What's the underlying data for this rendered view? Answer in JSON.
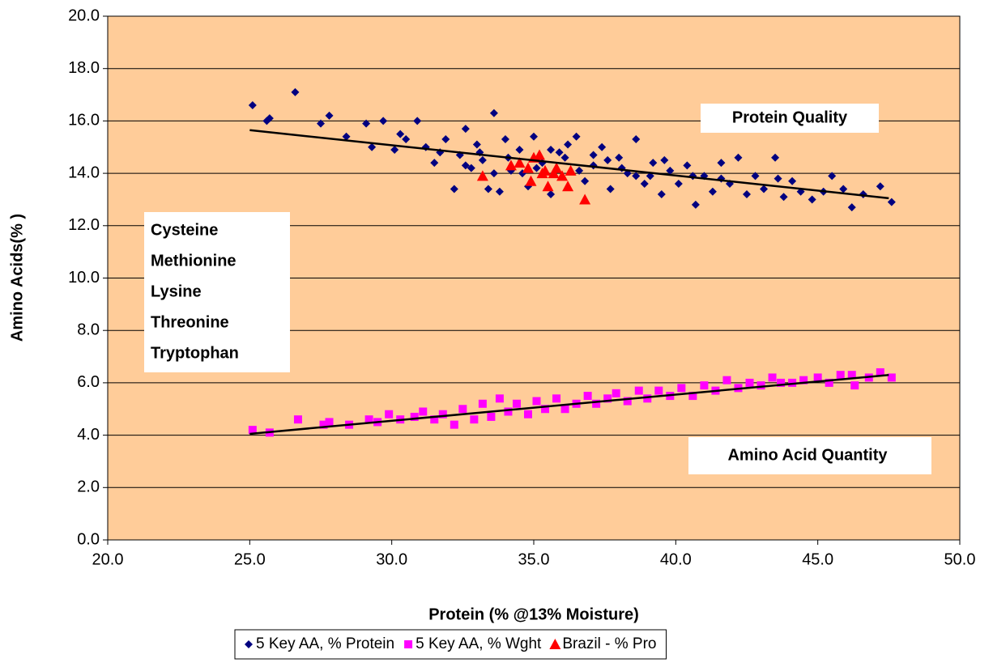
{
  "chart_data": {
    "type": "scatter",
    "x_label": "Protein (% @13% Moisture)",
    "y_label": "Amino Acids(% )",
    "xlim": [
      20,
      50
    ],
    "ylim": [
      0,
      20
    ],
    "xticks": [
      {
        "value": 20,
        "label": "20.0"
      },
      {
        "value": 25,
        "label": "25.0"
      },
      {
        "value": 30,
        "label": "30.0"
      },
      {
        "value": 35,
        "label": "35.0"
      },
      {
        "value": 40,
        "label": "40.0"
      },
      {
        "value": 45,
        "label": "45.0"
      },
      {
        "value": 50,
        "label": "50.0"
      }
    ],
    "yticks": [
      {
        "value": 0,
        "label": "0.0"
      },
      {
        "value": 2,
        "label": "2.0"
      },
      {
        "value": 4,
        "label": "4.0"
      },
      {
        "value": 6,
        "label": "6.0"
      },
      {
        "value": 8,
        "label": "8.0"
      },
      {
        "value": 10,
        "label": "10.0"
      },
      {
        "value": 12,
        "label": "12.0"
      },
      {
        "value": 14,
        "label": "14.0"
      },
      {
        "value": 16,
        "label": "16.0"
      },
      {
        "value": 18,
        "label": "18.0"
      },
      {
        "value": 20,
        "label": "20.0"
      }
    ],
    "grid": true,
    "legend": "bottom",
    "plot_background": "#FFCC99",
    "annotations": {
      "quality": "Protein Quality",
      "quantity": "Amino Acid Quantity",
      "amino_acids": [
        "Cysteine",
        "Methionine",
        "Lysine",
        "Threonine",
        "Tryptophan"
      ]
    },
    "series": [
      {
        "name": "5 Key AA, % Protein",
        "color": "#000080",
        "marker": "diamond",
        "x": [
          25.1,
          25.6,
          25.7,
          26.6,
          27.5,
          27.8,
          28.4,
          29.1,
          29.3,
          29.7,
          30.1,
          30.3,
          30.5,
          30.9,
          31.2,
          31.5,
          31.7,
          31.9,
          32.2,
          32.4,
          32.6,
          32.8,
          33.0,
          33.2,
          33.4,
          33.6,
          33.8,
          34.0,
          34.2,
          34.5,
          34.8,
          35.0,
          35.3,
          35.6,
          35.9,
          36.2,
          36.5,
          36.8,
          37.1,
          37.4,
          37.7,
          38.0,
          38.3,
          38.6,
          38.9,
          39.2,
          39.5,
          39.8,
          40.1,
          40.4,
          40.7,
          41.0,
          41.3,
          41.6,
          41.9,
          42.2,
          42.5,
          42.8,
          43.1,
          43.5,
          43.8,
          44.1,
          44.4,
          44.8,
          45.2,
          45.5,
          45.9,
          46.2,
          46.6,
          47.2,
          47.6,
          33.1,
          34.1,
          35.1,
          36.1,
          37.1,
          38.1,
          39.1,
          34.6,
          35.6,
          36.6,
          37.6,
          38.6,
          32.6,
          33.6,
          39.6,
          40.6,
          41.6,
          43.6
        ],
        "values": [
          16.6,
          16.0,
          16.1,
          17.1,
          15.9,
          16.2,
          15.4,
          15.9,
          15.0,
          16.0,
          14.9,
          15.5,
          15.3,
          16.0,
          15.0,
          14.4,
          14.8,
          15.3,
          13.4,
          14.7,
          15.7,
          14.2,
          15.1,
          14.5,
          13.4,
          16.3,
          13.3,
          15.3,
          14.1,
          14.9,
          13.5,
          15.4,
          14.4,
          13.2,
          14.8,
          15.1,
          15.4,
          13.7,
          14.3,
          15.0,
          13.4,
          14.6,
          14.0,
          15.3,
          13.6,
          14.4,
          13.2,
          14.1,
          13.6,
          14.3,
          12.8,
          13.9,
          13.3,
          14.4,
          13.6,
          14.6,
          13.2,
          13.9,
          13.4,
          14.6,
          13.1,
          13.7,
          13.3,
          13.0,
          13.3,
          13.9,
          13.4,
          12.7,
          13.2,
          13.5,
          12.9,
          14.8,
          14.6,
          14.2,
          14.6,
          14.7,
          14.2,
          13.9,
          14.0,
          14.9,
          14.1,
          14.5,
          13.9,
          14.3,
          14.0,
          14.5,
          13.9,
          13.8,
          13.8
        ]
      },
      {
        "name": "5 Key AA, % Wght",
        "color": "#FF00FF",
        "marker": "square",
        "x": [
          25.1,
          25.7,
          26.7,
          27.6,
          27.8,
          28.5,
          29.2,
          29.5,
          29.9,
          30.3,
          30.8,
          31.1,
          31.5,
          31.8,
          32.2,
          32.5,
          32.9,
          33.2,
          33.5,
          33.8,
          34.1,
          34.4,
          34.8,
          35.1,
          35.4,
          35.8,
          36.1,
          36.5,
          36.9,
          37.2,
          37.6,
          37.9,
          38.3,
          38.7,
          39.0,
          39.4,
          39.8,
          40.2,
          40.6,
          41.0,
          41.4,
          41.8,
          42.2,
          42.6,
          43.0,
          43.4,
          43.7,
          44.1,
          44.5,
          45.0,
          45.4,
          45.8,
          46.2,
          46.3,
          46.8,
          47.2,
          47.6
        ],
        "values": [
          4.2,
          4.1,
          4.6,
          4.4,
          4.5,
          4.4,
          4.6,
          4.5,
          4.8,
          4.6,
          4.7,
          4.9,
          4.6,
          4.8,
          4.4,
          5.0,
          4.6,
          5.2,
          4.7,
          5.4,
          4.9,
          5.2,
          4.8,
          5.3,
          5.0,
          5.4,
          5.0,
          5.2,
          5.5,
          5.2,
          5.4,
          5.6,
          5.3,
          5.7,
          5.4,
          5.7,
          5.5,
          5.8,
          5.5,
          5.9,
          5.7,
          6.1,
          5.8,
          6.0,
          5.9,
          6.2,
          6.0,
          6.0,
          6.1,
          6.2,
          6.0,
          6.3,
          6.3,
          5.9,
          6.2,
          6.4,
          6.2
        ]
      },
      {
        "name": "Brazil - % Pro",
        "color": "#FF0000",
        "marker": "triangle",
        "x": [
          33.2,
          34.2,
          34.5,
          34.8,
          35.0,
          35.2,
          34.9,
          35.3,
          35.5,
          35.7,
          35.4,
          36.0,
          36.2,
          36.3,
          36.8,
          35.8
        ],
        "values": [
          13.9,
          14.3,
          14.4,
          14.2,
          14.6,
          14.7,
          13.7,
          14.0,
          13.5,
          14.0,
          14.1,
          13.9,
          13.5,
          14.1,
          13.0,
          14.2
        ]
      }
    ],
    "trendlines": [
      {
        "color": "#000000",
        "x": [
          25,
          47.5
        ],
        "y": [
          15.65,
          13.05
        ]
      },
      {
        "color": "#000000",
        "x": [
          25,
          47.5
        ],
        "y": [
          4.05,
          6.3
        ]
      }
    ]
  }
}
